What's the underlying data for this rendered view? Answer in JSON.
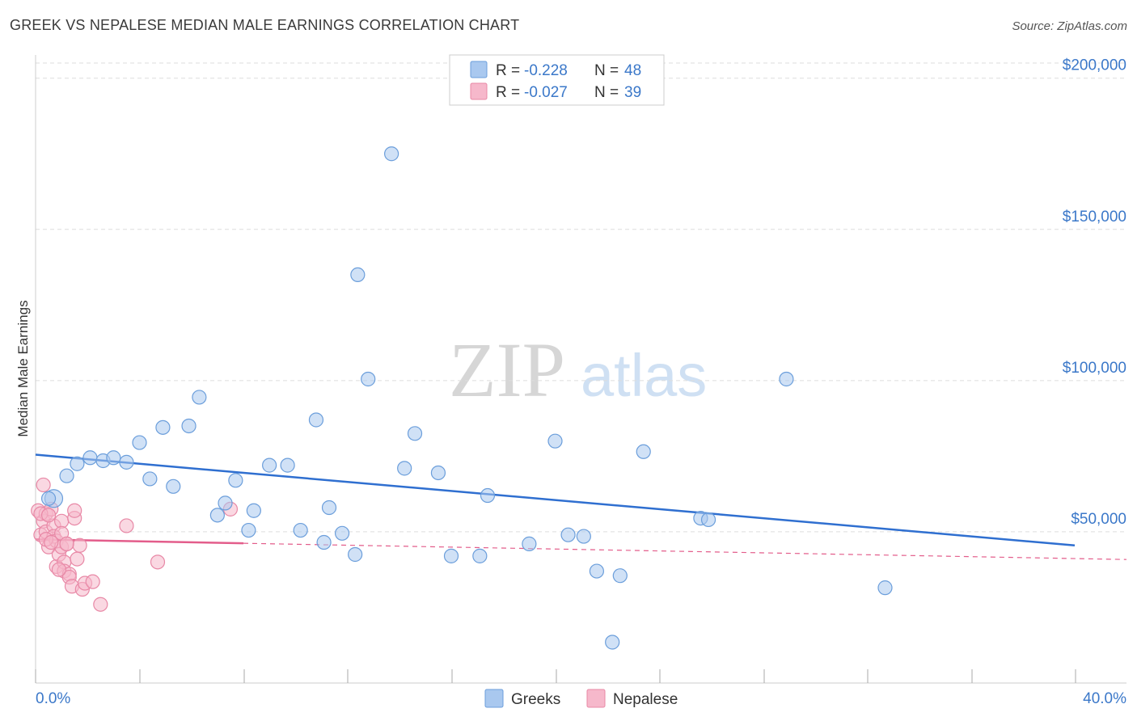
{
  "title": "GREEK VS NEPALESE MEDIAN MALE EARNINGS CORRELATION CHART",
  "source": "Source: ZipAtlas.com",
  "watermark": {
    "zip": "ZIP",
    "atlas": "atlas"
  },
  "colors": {
    "greeks_fill": "#a9c8ef",
    "greeks_stroke": "#6b9edb",
    "greeks_line": "#2f6fd0",
    "nepalese_fill": "#f6b8cb",
    "nepalese_stroke": "#e888a6",
    "nepalese_line": "#e35d8b",
    "grid": "#dddddd",
    "axis_label": "#3b78c9"
  },
  "legend_top": [
    {
      "r_label": "R =",
      "r_value": "-0.228",
      "n_label": "N =",
      "n_value": "48"
    },
    {
      "r_label": "R =",
      "r_value": "-0.027",
      "n_label": "N =",
      "n_value": "39"
    }
  ],
  "chart_data": {
    "type": "scatter",
    "title": "GREEK VS NEPALESE MEDIAN MALE EARNINGS CORRELATION CHART",
    "xlabel": "",
    "ylabel": "Median Male Earnings",
    "xlim": [
      0,
      40
    ],
    "ylim": [
      0,
      205000
    ],
    "x_tick_labels": [
      "0.0%",
      "40.0%"
    ],
    "y_ticks": [
      50000,
      100000,
      150000,
      200000
    ],
    "y_tick_labels": [
      "$50,000",
      "$100,000",
      "$150,000",
      "$200,000"
    ],
    "legend": [
      "Greeks",
      "Nepalese"
    ],
    "series": [
      {
        "name": "Greeks",
        "r": -0.228,
        "n": 48,
        "trend": {
          "x": [
            0,
            40
          ],
          "y": [
            75500,
            45500
          ]
        },
        "points": [
          [
            0.7,
            61000
          ],
          [
            1.2,
            68500
          ],
          [
            1.6,
            72500
          ],
          [
            2.1,
            74500
          ],
          [
            2.6,
            73500
          ],
          [
            3.0,
            74500
          ],
          [
            3.5,
            73000
          ],
          [
            4.0,
            79500
          ],
          [
            4.4,
            67500
          ],
          [
            4.9,
            84500
          ],
          [
            5.3,
            65000
          ],
          [
            5.9,
            85000
          ],
          [
            6.3,
            94500
          ],
          [
            7.0,
            55500
          ],
          [
            7.3,
            59500
          ],
          [
            7.7,
            67000
          ],
          [
            8.2,
            50500
          ],
          [
            8.4,
            57000
          ],
          [
            9.0,
            72000
          ],
          [
            9.7,
            72000
          ],
          [
            10.2,
            50500
          ],
          [
            10.8,
            87000
          ],
          [
            11.1,
            46500
          ],
          [
            11.3,
            58000
          ],
          [
            11.8,
            49500
          ],
          [
            12.3,
            42500
          ],
          [
            12.4,
            135000
          ],
          [
            12.8,
            100500
          ],
          [
            13.7,
            175000
          ],
          [
            14.2,
            71000
          ],
          [
            14.6,
            82500
          ],
          [
            15.5,
            69500
          ],
          [
            16.0,
            42000
          ],
          [
            17.1,
            42000
          ],
          [
            17.4,
            62000
          ],
          [
            19.0,
            46000
          ],
          [
            20.0,
            80000
          ],
          [
            20.5,
            49000
          ],
          [
            21.1,
            48500
          ],
          [
            21.6,
            37000
          ],
          [
            22.2,
            13500
          ],
          [
            22.5,
            35500
          ],
          [
            23.4,
            76500
          ],
          [
            25.6,
            54500
          ],
          [
            25.9,
            54000
          ],
          [
            28.9,
            100500
          ],
          [
            32.7,
            31500
          ],
          [
            0.5,
            61000
          ]
        ]
      },
      {
        "name": "Nepalese",
        "r": -0.027,
        "n": 39,
        "trend": {
          "x": [
            0,
            40
          ],
          "y": [
            47500,
            41000
          ],
          "solid_until": 8
        },
        "points": [
          [
            0.1,
            57000
          ],
          [
            0.2,
            49000
          ],
          [
            0.3,
            65500
          ],
          [
            0.3,
            53500
          ],
          [
            0.4,
            56000
          ],
          [
            0.4,
            50000
          ],
          [
            0.5,
            45000
          ],
          [
            0.6,
            57500
          ],
          [
            0.7,
            52000
          ],
          [
            0.7,
            48500
          ],
          [
            0.8,
            47000
          ],
          [
            0.8,
            38500
          ],
          [
            0.9,
            42500
          ],
          [
            1.0,
            53500
          ],
          [
            1.0,
            45000
          ],
          [
            1.1,
            40000
          ],
          [
            1.1,
            37000
          ],
          [
            1.2,
            46000
          ],
          [
            1.3,
            36000
          ],
          [
            1.3,
            35000
          ],
          [
            1.4,
            32000
          ],
          [
            1.5,
            54500
          ],
          [
            1.5,
            57000
          ],
          [
            1.6,
            41000
          ],
          [
            1.7,
            45500
          ],
          [
            1.8,
            31000
          ],
          [
            1.9,
            33000
          ],
          [
            2.2,
            33500
          ],
          [
            2.5,
            26000
          ],
          [
            3.5,
            52000
          ],
          [
            4.7,
            40000
          ],
          [
            7.5,
            57500
          ],
          [
            0.2,
            56000
          ],
          [
            0.4,
            47500
          ],
          [
            0.6,
            46500
          ],
          [
            1.0,
            49500
          ],
          [
            0.9,
            37500
          ],
          [
            1.2,
            46000
          ],
          [
            0.5,
            55500
          ]
        ]
      }
    ]
  }
}
